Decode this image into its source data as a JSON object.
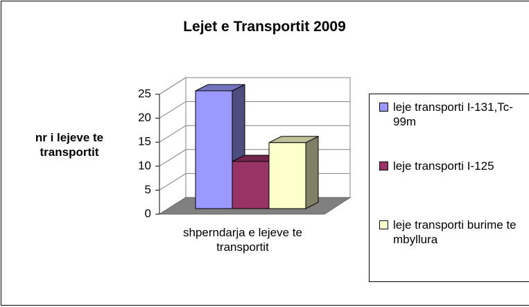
{
  "chart_data": {
    "type": "bar3d",
    "title": "Lejet e Transportit 2009",
    "ylabel": "nr i lejeve te transportit",
    "categories": [
      "shperndarja e lejeve te transportit"
    ],
    "series": [
      {
        "name": "leje transporti I-131,Tc-99m",
        "color": "#9999ff",
        "values": [
          25
        ]
      },
      {
        "name": "leje transporti I-125",
        "color": "#993366",
        "values": [
          10
        ]
      },
      {
        "name": "leje transporti burime te mbyllura",
        "color": "#ffffcc",
        "values": [
          14
        ]
      }
    ],
    "ylim": [
      0,
      25
    ],
    "yticks": [
      0,
      5,
      10,
      15,
      20,
      25
    ],
    "grid": true,
    "legend": "right"
  }
}
